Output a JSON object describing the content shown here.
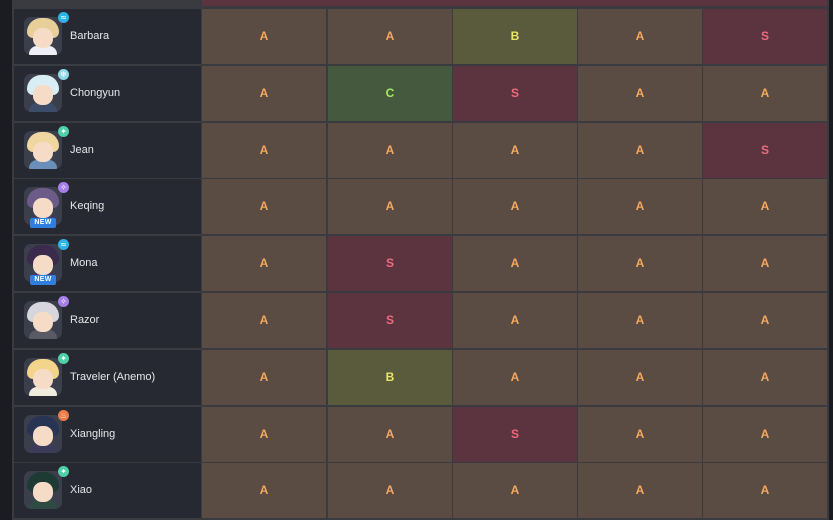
{
  "colors": {
    "tier_A": "#f5a85f",
    "tier_S": "#f06a7c",
    "tier_B": "#e8e76a",
    "tier_C": "#a4ea5f"
  },
  "rows": [
    {
      "name": "Barbara",
      "element": "hydro-icon",
      "element_color": "#2bb4e6",
      "is_new": false,
      "new_label": "",
      "hair": "#e8cf9a",
      "outfit": "#eef0f6",
      "tiers": [
        "A",
        "A",
        "B",
        "A",
        "S"
      ]
    },
    {
      "name": "Chongyun",
      "element": "cryo-icon",
      "element_color": "#8fd8e8",
      "is_new": false,
      "new_label": "",
      "hair": "#d8eef4",
      "outfit": "#3c4d6a",
      "tiers": [
        "A",
        "C",
        "S",
        "A",
        "A"
      ]
    },
    {
      "name": "Jean",
      "element": "anemo-icon",
      "element_color": "#4fd0a8",
      "is_new": false,
      "new_label": "",
      "hair": "#f0d6a0",
      "outfit": "#6a8fb8",
      "tiers": [
        "A",
        "A",
        "A",
        "A",
        "S"
      ]
    },
    {
      "name": "Keqing",
      "element": "electro-icon",
      "element_color": "#a67fe8",
      "is_new": true,
      "new_label": "NEW",
      "hair": "#6c5a88",
      "outfit": "#4a3e66",
      "tiers": [
        "A",
        "A",
        "A",
        "A",
        "A"
      ]
    },
    {
      "name": "Mona",
      "element": "hydro-icon",
      "element_color": "#2bb4e6",
      "is_new": true,
      "new_label": "NEW",
      "hair": "#3a2a4c",
      "outfit": "#4a2e6a",
      "tiers": [
        "A",
        "S",
        "A",
        "A",
        "A"
      ]
    },
    {
      "name": "Razor",
      "element": "electro-icon",
      "element_color": "#a67fe8",
      "is_new": false,
      "new_label": "",
      "hair": "#d6d6dc",
      "outfit": "#5a5a64",
      "tiers": [
        "A",
        "S",
        "A",
        "A",
        "A"
      ]
    },
    {
      "name": "Traveler (Anemo)",
      "element": "anemo-icon",
      "element_color": "#4fd0a8",
      "is_new": false,
      "new_label": "",
      "hair": "#f2d48a",
      "outfit": "#f0ecde",
      "tiers": [
        "A",
        "B",
        "A",
        "A",
        "A"
      ]
    },
    {
      "name": "Xiangling",
      "element": "pyro-icon",
      "element_color": "#ec7a45",
      "is_new": false,
      "new_label": "",
      "hair": "#283454",
      "outfit": "#3e3a5a",
      "tiers": [
        "A",
        "A",
        "S",
        "A",
        "A"
      ]
    },
    {
      "name": "Xiao",
      "element": "anemo-icon",
      "element_color": "#4fd0a8",
      "is_new": false,
      "new_label": "",
      "hair": "#1e3a34",
      "outfit": "#2e4a42",
      "tiers": [
        "A",
        "A",
        "A",
        "A",
        "A"
      ]
    }
  ]
}
